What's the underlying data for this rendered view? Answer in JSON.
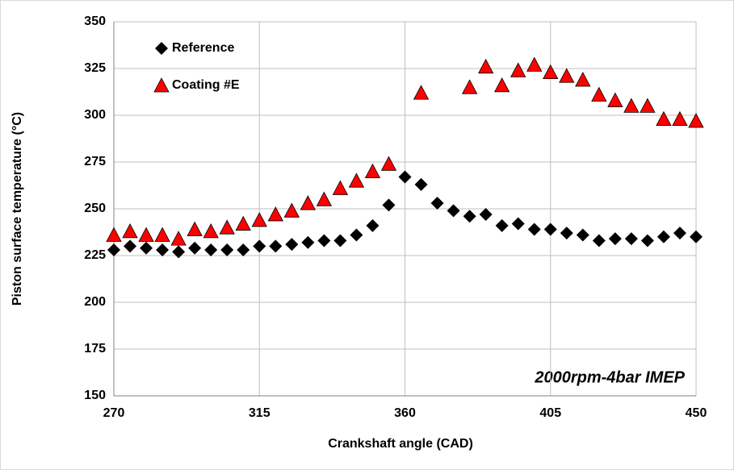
{
  "chart_data": {
    "type": "scatter",
    "xlabel": "Crankshaft angle (CAD)",
    "ylabel": "Piston surface temperature (°C)",
    "annotation": "2000rpm-4bar IMEP",
    "x": [
      270,
      275,
      280,
      285,
      290,
      295,
      300,
      305,
      310,
      315,
      320,
      325,
      330,
      335,
      340,
      345,
      350,
      355,
      360,
      365,
      370,
      375,
      380,
      385,
      390,
      395,
      400,
      405,
      410,
      415,
      420,
      425,
      430,
      435,
      440,
      445,
      450
    ],
    "series": [
      {
        "name": "Reference",
        "color": "#000000",
        "marker": "diamond",
        "values": [
          228,
          230,
          229,
          228,
          227,
          229,
          228,
          228,
          228,
          230,
          230,
          231,
          232,
          233,
          233,
          236,
          241,
          252,
          267,
          263,
          253,
          249,
          246,
          247,
          241,
          242,
          239,
          239,
          237,
          236,
          233,
          234,
          234,
          233,
          235,
          237,
          235
        ]
      },
      {
        "name": "Coating #E",
        "color": "#ff0000",
        "marker": "triangle",
        "values": [
          236,
          238,
          236,
          236,
          234,
          239,
          238,
          240,
          242,
          244,
          247,
          249,
          253,
          255,
          261,
          265,
          270,
          274,
          null,
          312,
          null,
          null,
          315,
          326,
          316,
          324,
          327,
          323,
          321,
          319,
          311,
          308,
          305,
          305,
          298,
          298,
          297
        ]
      }
    ],
    "xlim": [
      270,
      450
    ],
    "xticks": [
      270,
      315,
      360,
      405,
      450
    ],
    "ylim": [
      150,
      350
    ],
    "yticks": [
      150,
      175,
      200,
      225,
      250,
      275,
      300,
      325,
      350
    ],
    "grid": true,
    "legend": "upper left"
  }
}
